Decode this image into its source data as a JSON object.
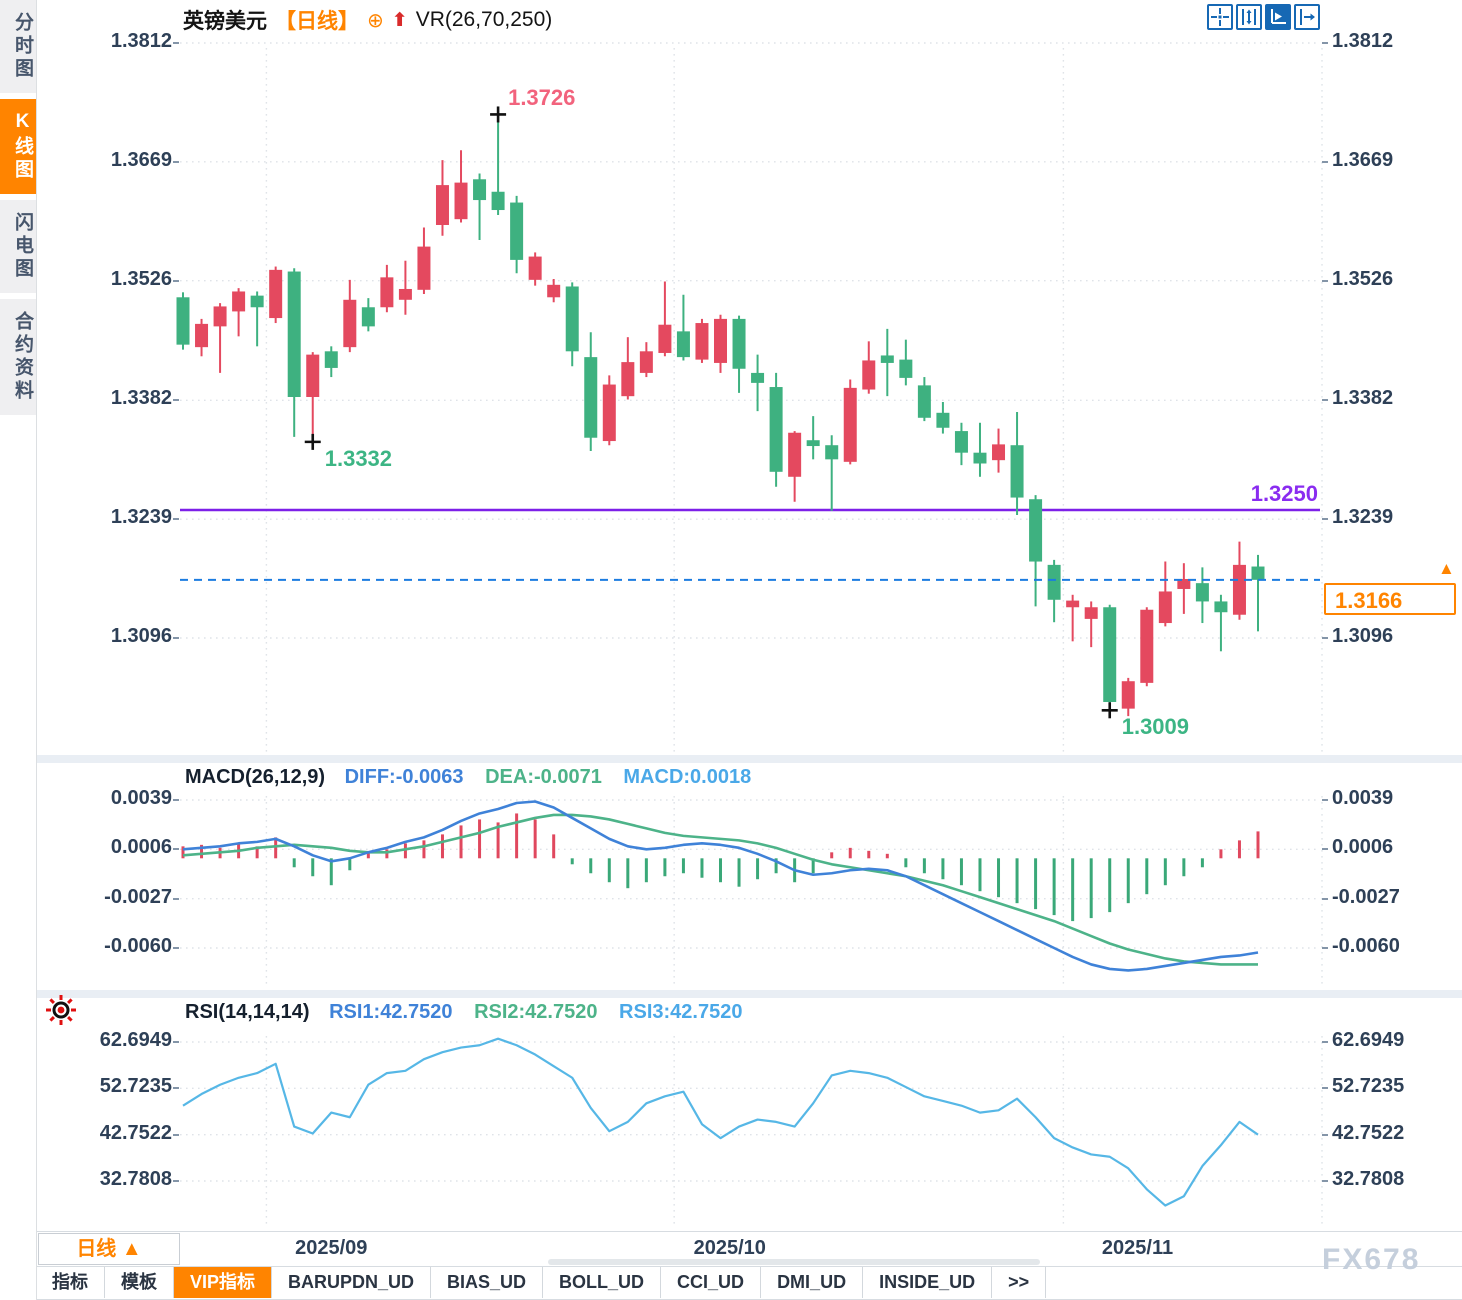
{
  "header": {
    "symbol": "英镑美元",
    "period": "【日线】",
    "target_icon": "⊕",
    "up_arrow": "⬆",
    "indicator": "VR(26,70,250)"
  },
  "toolbar": {
    "icons": [
      {
        "name": "crosshair-icon",
        "active": false
      },
      {
        "name": "axis-range-icon",
        "active": false
      },
      {
        "name": "auto-scale-icon",
        "active": true
      },
      {
        "name": "pan-right-icon",
        "active": false
      }
    ]
  },
  "sidebar": {
    "items": [
      {
        "label": "分时图",
        "active": false
      },
      {
        "label": "K线图",
        "active": true
      },
      {
        "label": "闪电图",
        "active": false
      },
      {
        "label": "合约资料",
        "active": false
      }
    ]
  },
  "colors": {
    "up": "#e4495f",
    "down": "#3eb180",
    "macd_diff": "#3f82d8",
    "macd_dea": "#4db389",
    "hist_up": "#e0485e",
    "hist_down": "#3aa878",
    "rsi_line": "#56b7e6",
    "accent": "#ff8400",
    "resistance": "#7d20e8",
    "current_line": "#1c7ce0",
    "grid": "#dfe3e8",
    "axis_text": "#2e4057",
    "high_label": "#f2637d",
    "low_label": "#3cb584"
  },
  "chart_data": {
    "type": "candlestick",
    "title": "英镑美元 日线 (GBP/USD Daily)",
    "price_panel": {
      "yticks": [
        1.3812,
        1.3669,
        1.3526,
        1.3382,
        1.3239,
        1.3096
      ],
      "x_gridlines": [
        {
          "index": 4.5,
          "label": "2025/09",
          "label_index": 8
        },
        {
          "index": 26.5,
          "label": "2025/10",
          "label_index": 29.5
        },
        {
          "index": 47.5,
          "label": "2025/11",
          "label_index": 51.5
        }
      ],
      "resistance_line": {
        "value": 1.325,
        "label": "1.3250"
      },
      "current_price_line": {
        "value": 1.3166,
        "label": "1.3166"
      },
      "annotations": [
        {
          "type": "swing-high",
          "index": 17,
          "value": 1.3726,
          "label": "1.3726"
        },
        {
          "type": "swing-low",
          "index": 7,
          "value": 1.3332,
          "label": "1.3332"
        },
        {
          "type": "swing-low",
          "index": 50,
          "value": 1.3009,
          "label": "1.3009"
        }
      ],
      "series_ohlc": [
        [
          1.3506,
          1.3512,
          1.3443,
          1.3449
        ],
        [
          1.3446,
          1.348,
          1.3435,
          1.3474
        ],
        [
          1.3471,
          1.3499,
          1.3415,
          1.3495
        ],
        [
          1.3489,
          1.3517,
          1.3459,
          1.3513
        ],
        [
          1.3508,
          1.3513,
          1.3447,
          1.3494
        ],
        [
          1.3481,
          1.3543,
          1.3475,
          1.3539
        ],
        [
          1.3537,
          1.3541,
          1.3338,
          1.3386
        ],
        [
          1.3386,
          1.344,
          1.3332,
          1.3437
        ],
        [
          1.3441,
          1.3447,
          1.341,
          1.3421
        ],
        [
          1.3446,
          1.3527,
          1.344,
          1.3503
        ],
        [
          1.3494,
          1.3505,
          1.3465,
          1.3471
        ],
        [
          1.3494,
          1.3545,
          1.3488,
          1.353
        ],
        [
          1.3503,
          1.355,
          1.3485,
          1.3516
        ],
        [
          1.3515,
          1.359,
          1.351,
          1.3567
        ],
        [
          1.3593,
          1.3671,
          1.358,
          1.3641
        ],
        [
          1.36,
          1.3683,
          1.3596,
          1.3644
        ],
        [
          1.3648,
          1.3655,
          1.3575,
          1.3623
        ],
        [
          1.3633,
          1.3726,
          1.3605,
          1.3611
        ],
        [
          1.362,
          1.3628,
          1.3535,
          1.3551
        ],
        [
          1.3527,
          1.356,
          1.352,
          1.3555
        ],
        [
          1.3506,
          1.3528,
          1.35,
          1.3521
        ],
        [
          1.3519,
          1.3524,
          1.3423,
          1.3441
        ],
        [
          1.3434,
          1.3464,
          1.3321,
          1.3337
        ],
        [
          1.3333,
          1.3412,
          1.3328,
          1.3401
        ],
        [
          1.3387,
          1.3458,
          1.3383,
          1.3428
        ],
        [
          1.3415,
          1.3452,
          1.341,
          1.3441
        ],
        [
          1.3439,
          1.3525,
          1.3435,
          1.3473
        ],
        [
          1.3465,
          1.3509,
          1.343,
          1.3434
        ],
        [
          1.3431,
          1.348,
          1.3427,
          1.3475
        ],
        [
          1.3427,
          1.3485,
          1.3415,
          1.348
        ],
        [
          1.348,
          1.3484,
          1.3391,
          1.342
        ],
        [
          1.3415,
          1.3437,
          1.3369,
          1.3403
        ],
        [
          1.3398,
          1.3415,
          1.3278,
          1.3296
        ],
        [
          1.329,
          1.3345,
          1.326,
          1.3343
        ],
        [
          1.3334,
          1.3363,
          1.3311,
          1.3327
        ],
        [
          1.3328,
          1.334,
          1.3249,
          1.3311
        ],
        [
          1.3308,
          1.3407,
          1.3305,
          1.3397
        ],
        [
          1.3395,
          1.3453,
          1.339,
          1.343
        ],
        [
          1.3436,
          1.3468,
          1.3387,
          1.3427
        ],
        [
          1.3431,
          1.3455,
          1.34,
          1.3409
        ],
        [
          1.34,
          1.341,
          1.3357,
          1.3361
        ],
        [
          1.3367,
          1.338,
          1.3342,
          1.3349
        ],
        [
          1.3345,
          1.3355,
          1.3304,
          1.3319
        ],
        [
          1.3319,
          1.3355,
          1.329,
          1.3306
        ],
        [
          1.331,
          1.3348,
          1.3295,
          1.3329
        ],
        [
          1.3328,
          1.3368,
          1.3244,
          1.3265
        ],
        [
          1.3263,
          1.3268,
          1.3134,
          1.3188
        ],
        [
          1.3184,
          1.319,
          1.3115,
          1.3142
        ],
        [
          1.3133,
          1.3148,
          1.3092,
          1.3141
        ],
        [
          1.3119,
          1.314,
          1.3085,
          1.3133
        ],
        [
          1.3133,
          1.3136,
          1.3009,
          1.3019
        ],
        [
          1.3011,
          1.3048,
          1.3002,
          1.3044
        ],
        [
          1.3042,
          1.3133,
          1.3038,
          1.313
        ],
        [
          1.3114,
          1.3188,
          1.311,
          1.3152
        ],
        [
          1.3155,
          1.3186,
          1.3125,
          1.3167
        ],
        [
          1.3162,
          1.3181,
          1.3114,
          1.314
        ],
        [
          1.314,
          1.3148,
          1.308,
          1.3127
        ],
        [
          1.3124,
          1.3212,
          1.3118,
          1.3184
        ],
        [
          1.3182,
          1.3196,
          1.3104,
          1.3166
        ]
      ]
    },
    "macd_panel": {
      "title": "MACD(26,12,9)",
      "legend": {
        "diff": "DIFF:-0.0063",
        "dea": "DEA:-0.0071",
        "macd": "MACD:0.0018"
      },
      "yticks": [
        0.0039,
        0.0006,
        -0.0027,
        -0.006
      ],
      "diff": [
        0.0006,
        0.0007,
        0.0008,
        0.001,
        0.0011,
        0.0013,
        0.0008,
        0.0002,
        -0.0002,
        0.0,
        0.0004,
        0.0007,
        0.0011,
        0.0014,
        0.0019,
        0.0025,
        0.003,
        0.0033,
        0.0037,
        0.0038,
        0.0034,
        0.0027,
        0.002,
        0.0013,
        0.0008,
        0.0006,
        0.0007,
        0.0009,
        0.001,
        0.0009,
        0.0007,
        0.0003,
        -0.0002,
        -0.0008,
        -0.0011,
        -0.001,
        -0.0008,
        -0.0007,
        -0.0008,
        -0.0012,
        -0.0018,
        -0.0024,
        -0.003,
        -0.0036,
        -0.0042,
        -0.0048,
        -0.0054,
        -0.006,
        -0.0066,
        -0.0071,
        -0.0074,
        -0.0075,
        -0.0074,
        -0.0072,
        -0.007,
        -0.0068,
        -0.0066,
        -0.0065,
        -0.0063
      ],
      "dea": [
        0.0002,
        0.0003,
        0.0004,
        0.0005,
        0.0007,
        0.0008,
        0.0009,
        0.0008,
        0.0007,
        0.0005,
        0.0004,
        0.0004,
        0.0006,
        0.0008,
        0.0011,
        0.0014,
        0.0017,
        0.0021,
        0.0024,
        0.0027,
        0.0029,
        0.0029,
        0.0028,
        0.0026,
        0.0023,
        0.002,
        0.0017,
        0.0015,
        0.0014,
        0.0013,
        0.0012,
        0.001,
        0.0007,
        0.0003,
        -0.0001,
        -0.0004,
        -0.0006,
        -0.0008,
        -0.001,
        -0.0012,
        -0.0015,
        -0.0018,
        -0.0022,
        -0.0026,
        -0.003,
        -0.0034,
        -0.0038,
        -0.0042,
        -0.0047,
        -0.0052,
        -0.0057,
        -0.0061,
        -0.0064,
        -0.0067,
        -0.0069,
        -0.007,
        -0.0071,
        -0.0071,
        -0.0071
      ],
      "hist": [
        0.0008,
        0.0009,
        0.0007,
        0.001,
        0.0008,
        0.0014,
        -0.0006,
        -0.0012,
        -0.0018,
        -0.0008,
        0.0004,
        0.0006,
        0.001,
        0.0012,
        0.0016,
        0.0022,
        0.0026,
        0.0024,
        0.003,
        0.0026,
        0.0016,
        -0.0004,
        -0.001,
        -0.0016,
        -0.002,
        -0.0016,
        -0.0012,
        -0.001,
        -0.0013,
        -0.0016,
        -0.0019,
        -0.0014,
        -0.001,
        -0.0016,
        -0.001,
        0.0004,
        0.0007,
        0.0005,
        0.0003,
        -0.0006,
        -0.001,
        -0.0014,
        -0.0018,
        -0.0022,
        -0.0026,
        -0.003,
        -0.0034,
        -0.0038,
        -0.0042,
        -0.004,
        -0.0036,
        -0.003,
        -0.0024,
        -0.0018,
        -0.0012,
        -0.0006,
        0.0006,
        0.0012,
        0.0018
      ]
    },
    "rsi_panel": {
      "title": "RSI(14,14,14)",
      "legend": {
        "rsi1": "RSI1:42.7520",
        "rsi2": "RSI2:42.7520",
        "rsi3": "RSI3:42.7520"
      },
      "yticks": [
        62.6949,
        52.7235,
        42.7522,
        32.7808
      ],
      "values": [
        49.0,
        51.5,
        53.5,
        55.0,
        56.0,
        58.0,
        44.5,
        43.0,
        47.5,
        46.5,
        53.5,
        56.0,
        56.5,
        59.0,
        60.5,
        61.5,
        62.0,
        63.4,
        62.0,
        60.0,
        57.5,
        55.0,
        48.5,
        43.5,
        45.5,
        49.5,
        51.0,
        52.0,
        45.0,
        42.0,
        44.5,
        46.0,
        45.5,
        44.5,
        49.5,
        55.5,
        56.5,
        56.0,
        55.0,
        53.0,
        51.0,
        50.0,
        49.0,
        47.5,
        48.0,
        50.5,
        46.5,
        42.0,
        40.0,
        38.5,
        38.0,
        35.5,
        31.0,
        27.5,
        29.5,
        36.0,
        40.5,
        45.5,
        42.75
      ]
    }
  },
  "bottom_bar": {
    "period_button": {
      "label": "日线",
      "arrow": "▲"
    },
    "tabs": [
      {
        "label": "指标",
        "active": false
      },
      {
        "label": "模板",
        "active": false
      },
      {
        "label": "VIP指标",
        "active": true
      },
      {
        "label": "BARUPDN_UD",
        "active": false
      },
      {
        "label": "BIAS_UD",
        "active": false
      },
      {
        "label": "BOLL_UD",
        "active": false
      },
      {
        "label": "CCI_UD",
        "active": false
      },
      {
        "label": "DMI_UD",
        "active": false
      },
      {
        "label": "INSIDE_UD",
        "active": false
      },
      {
        "label": ">>",
        "active": false
      }
    ]
  },
  "watermark": "FX678"
}
